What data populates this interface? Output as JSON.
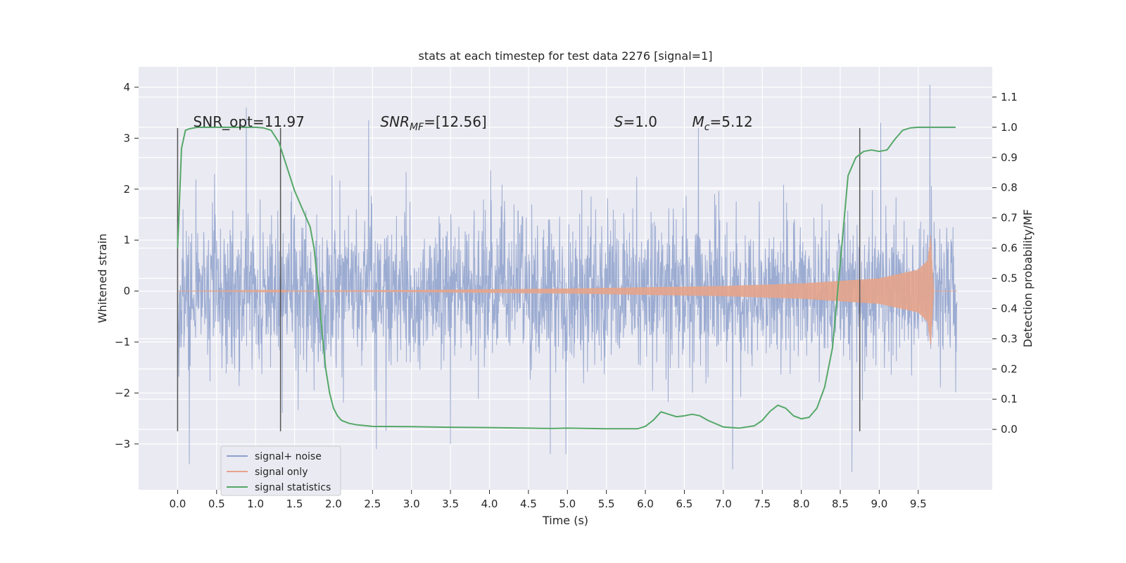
{
  "chart_data": {
    "type": "line",
    "title": "stats at each timestep for test data 2276 [signal=1]",
    "xlabel": "Time (s)",
    "ylabel_left": "Whitened strain",
    "ylabel_right": "Detection probability/MF",
    "xlim": [
      -0.5,
      10.45
    ],
    "ylim_left": [
      -3.9,
      4.4
    ],
    "ylim_right": [
      -0.2,
      1.2
    ],
    "x_ticks": [
      0.0,
      0.5,
      1.0,
      1.5,
      2.0,
      2.5,
      3.0,
      3.5,
      4.0,
      4.5,
      5.0,
      5.5,
      6.0,
      6.5,
      7.0,
      7.5,
      8.0,
      8.5,
      9.0,
      9.5
    ],
    "x_tick_labels": [
      "0.0",
      "0.5",
      "1.0",
      "1.5",
      "2.0",
      "2.5",
      "3.0",
      "3.5",
      "4.0",
      "4.5",
      "5.0",
      "5.5",
      "6.0",
      "6.5",
      "7.0",
      "7.5",
      "8.0",
      "8.5",
      "9.0",
      "9.5"
    ],
    "y_left_ticks": [
      -3,
      -2,
      -1,
      0,
      1,
      2,
      3,
      4
    ],
    "y_left_tick_labels": [
      "−3",
      "−2",
      "−1",
      "0",
      "1",
      "2",
      "3",
      "4"
    ],
    "y_right_ticks": [
      0.0,
      0.1,
      0.2,
      0.3,
      0.4,
      0.5,
      0.6,
      0.7,
      0.8,
      0.9,
      1.0,
      1.1
    ],
    "y_right_tick_labels": [
      "0.0",
      "0.1",
      "0.2",
      "0.3",
      "0.4",
      "0.5",
      "0.6",
      "0.7",
      "0.8",
      "0.9",
      "1.0",
      "1.1"
    ],
    "grid": true,
    "legend_position": "lower-left",
    "annotations": [
      {
        "text": "SNR_opt=11.97",
        "x": 0.2,
        "y_left": 3.2
      },
      {
        "text": "SNR",
        "sub": "MF",
        "rest": "=[12.56]",
        "x": 2.6,
        "y_left": 3.2
      },
      {
        "text": "S",
        "rest": "=1.0",
        "x": 5.6,
        "y_left": 3.2
      },
      {
        "text": "M",
        "sub": "c",
        "rest": "=5.12",
        "x": 6.6,
        "y_left": 3.2
      }
    ],
    "vertical_lines": [
      {
        "x": 0.0,
        "y_from": -2.75,
        "y_to": 3.2
      },
      {
        "x": 1.32,
        "y_from": -2.75,
        "y_to": 3.2
      },
      {
        "x": 8.75,
        "y_from": -2.75,
        "y_to": 3.2
      }
    ],
    "series": [
      {
        "name": "signal+ noise",
        "axis": "left",
        "color": "#8da0cb",
        "x_range": [
          0.0,
          10.0
        ],
        "typical_band": [
          -1.4,
          1.4
        ],
        "noise_std": 0.72,
        "peaks": [
          {
            "x": 0.88,
            "y": 3.6
          },
          {
            "x": 0.14,
            "y": -1.55
          },
          {
            "x": 0.15,
            "y": -3.4
          },
          {
            "x": 2.45,
            "y": 3.35
          },
          {
            "x": 2.55,
            "y": -3.1
          },
          {
            "x": 3.5,
            "y": -3.0
          },
          {
            "x": 4.78,
            "y": -3.2
          },
          {
            "x": 4.98,
            "y": -3.2
          },
          {
            "x": 6.68,
            "y": 3.2
          },
          {
            "x": 7.12,
            "y": -3.5
          },
          {
            "x": 8.65,
            "y": -3.55
          },
          {
            "x": 8.75,
            "y": -2.75
          },
          {
            "x": 9.02,
            "y": 3.3
          },
          {
            "x": 9.65,
            "y": 4.05
          }
        ]
      },
      {
        "name": "signal only",
        "axis": "left",
        "color": "#e5a48b",
        "x_range": [
          0.0,
          10.0
        ],
        "envelope": [
          {
            "x": 0.0,
            "amp": 0.0
          },
          {
            "x": 3.0,
            "amp": 0.02
          },
          {
            "x": 5.0,
            "amp": 0.05
          },
          {
            "x": 7.0,
            "amp": 0.1
          },
          {
            "x": 8.0,
            "amp": 0.15
          },
          {
            "x": 9.0,
            "amp": 0.25
          },
          {
            "x": 9.5,
            "amp": 0.42
          },
          {
            "x": 9.62,
            "amp": 0.6
          },
          {
            "x": 9.66,
            "amp": 1.1
          },
          {
            "x": 9.7,
            "amp": 0.0
          },
          {
            "x": 10.0,
            "amp": 0.0
          }
        ]
      },
      {
        "name": "signal statistics",
        "axis": "right",
        "color": "#55a868",
        "x": [
          0.0,
          0.05,
          0.1,
          0.15,
          0.25,
          0.4,
          0.6,
          0.8,
          1.0,
          1.1,
          1.2,
          1.3,
          1.4,
          1.5,
          1.6,
          1.7,
          1.75,
          1.8,
          1.85,
          1.9,
          1.95,
          2.0,
          2.05,
          2.1,
          2.2,
          2.3,
          2.5,
          3.0,
          3.5,
          4.0,
          4.5,
          4.8,
          5.0,
          5.5,
          5.9,
          6.0,
          6.1,
          6.2,
          6.3,
          6.4,
          6.5,
          6.6,
          6.7,
          6.8,
          7.0,
          7.2,
          7.4,
          7.5,
          7.6,
          7.7,
          7.8,
          7.9,
          8.0,
          8.1,
          8.2,
          8.3,
          8.4,
          8.5,
          8.6,
          8.7,
          8.8,
          8.9,
          9.0,
          9.1,
          9.2,
          9.3,
          9.4,
          9.5,
          9.6,
          9.8,
          9.98
        ],
        "y": [
          0.6,
          0.93,
          0.99,
          0.995,
          1.0,
          1.0,
          1.0,
          1.0,
          1.0,
          0.998,
          0.99,
          0.95,
          0.87,
          0.79,
          0.73,
          0.67,
          0.6,
          0.48,
          0.33,
          0.2,
          0.12,
          0.07,
          0.045,
          0.03,
          0.02,
          0.015,
          0.01,
          0.009,
          0.007,
          0.006,
          0.004,
          0.003,
          0.004,
          0.002,
          0.002,
          0.01,
          0.03,
          0.058,
          0.05,
          0.042,
          0.045,
          0.05,
          0.045,
          0.03,
          0.008,
          0.004,
          0.012,
          0.03,
          0.06,
          0.08,
          0.07,
          0.045,
          0.035,
          0.04,
          0.07,
          0.14,
          0.27,
          0.55,
          0.84,
          0.9,
          0.92,
          0.925,
          0.92,
          0.925,
          0.96,
          0.99,
          0.998,
          1.0,
          1.0,
          1.0,
          1.0
        ]
      }
    ]
  }
}
